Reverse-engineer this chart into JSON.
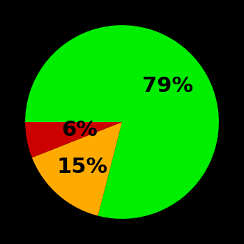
{
  "slices": [
    79,
    15,
    6
  ],
  "colors": [
    "#00ee00",
    "#ffaa00",
    "#cc0000"
  ],
  "labels": [
    "79%",
    "15%",
    "6%"
  ],
  "label_radii": [
    0.6,
    0.62,
    0.45
  ],
  "background_color": "#000000",
  "startangle": 180,
  "figsize": [
    3.5,
    3.5
  ],
  "dpi": 100,
  "label_fontsize": 22,
  "label_fontweight": "bold"
}
